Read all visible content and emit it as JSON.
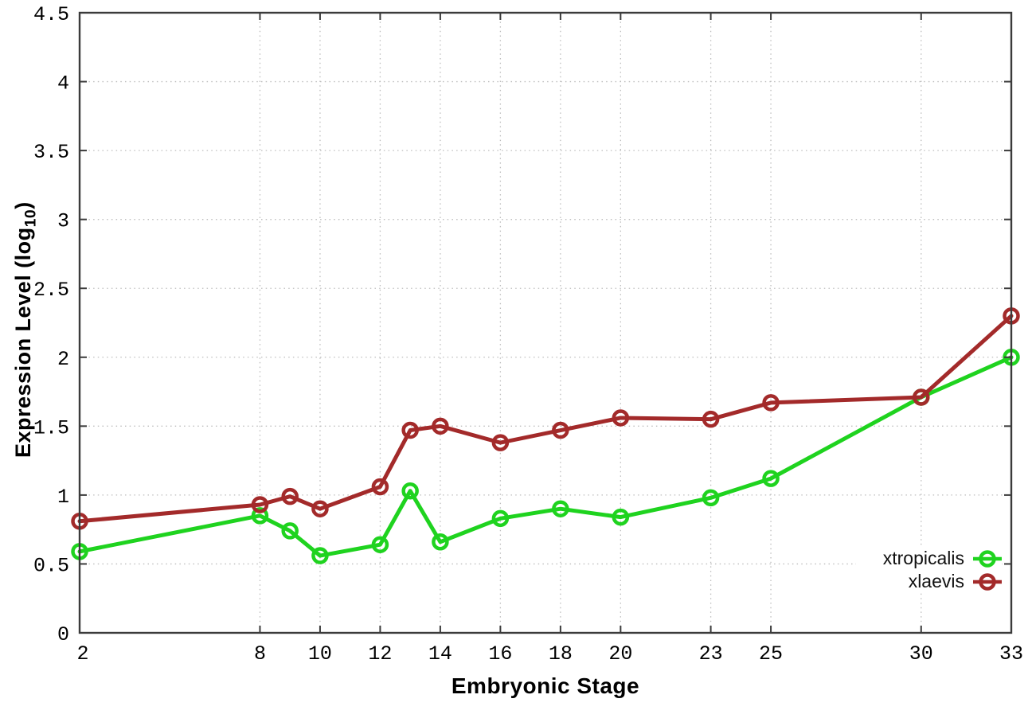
{
  "chart_data": {
    "type": "line",
    "title": "",
    "xlabel": "Embryonic Stage",
    "ylabel": "Expression Level (log10)",
    "ylabel_parts": {
      "prefix": "Expression Level (log",
      "sub": "10",
      "suffix": ")"
    },
    "xlim": [
      2,
      33
    ],
    "ylim": [
      0,
      4.5
    ],
    "xticks": [
      2,
      8,
      10,
      12,
      14,
      16,
      18,
      20,
      23,
      25,
      30,
      33
    ],
    "yticks": [
      0,
      0.5,
      1,
      1.5,
      2,
      2.5,
      3,
      3.5,
      4,
      4.5
    ],
    "grid": true,
    "grid_style": "dotted",
    "legend_position": "bottom-right",
    "legend_opaque": true,
    "marker": "open-circle",
    "x": [
      2,
      8,
      9,
      10,
      12,
      13,
      14,
      16,
      18,
      20,
      23,
      25,
      30,
      33
    ],
    "series": [
      {
        "name": "xtropicalis",
        "color": "#1fd31f",
        "values": [
          0.59,
          0.85,
          0.74,
          0.56,
          0.64,
          1.03,
          0.66,
          0.83,
          0.9,
          0.84,
          0.98,
          1.12,
          1.71,
          2.0
        ]
      },
      {
        "name": "xlaevis",
        "color": "#a32a2a",
        "values": [
          0.81,
          0.93,
          0.99,
          0.9,
          1.06,
          1.47,
          1.5,
          1.38,
          1.47,
          1.56,
          1.55,
          1.67,
          1.71,
          2.3
        ]
      }
    ]
  }
}
